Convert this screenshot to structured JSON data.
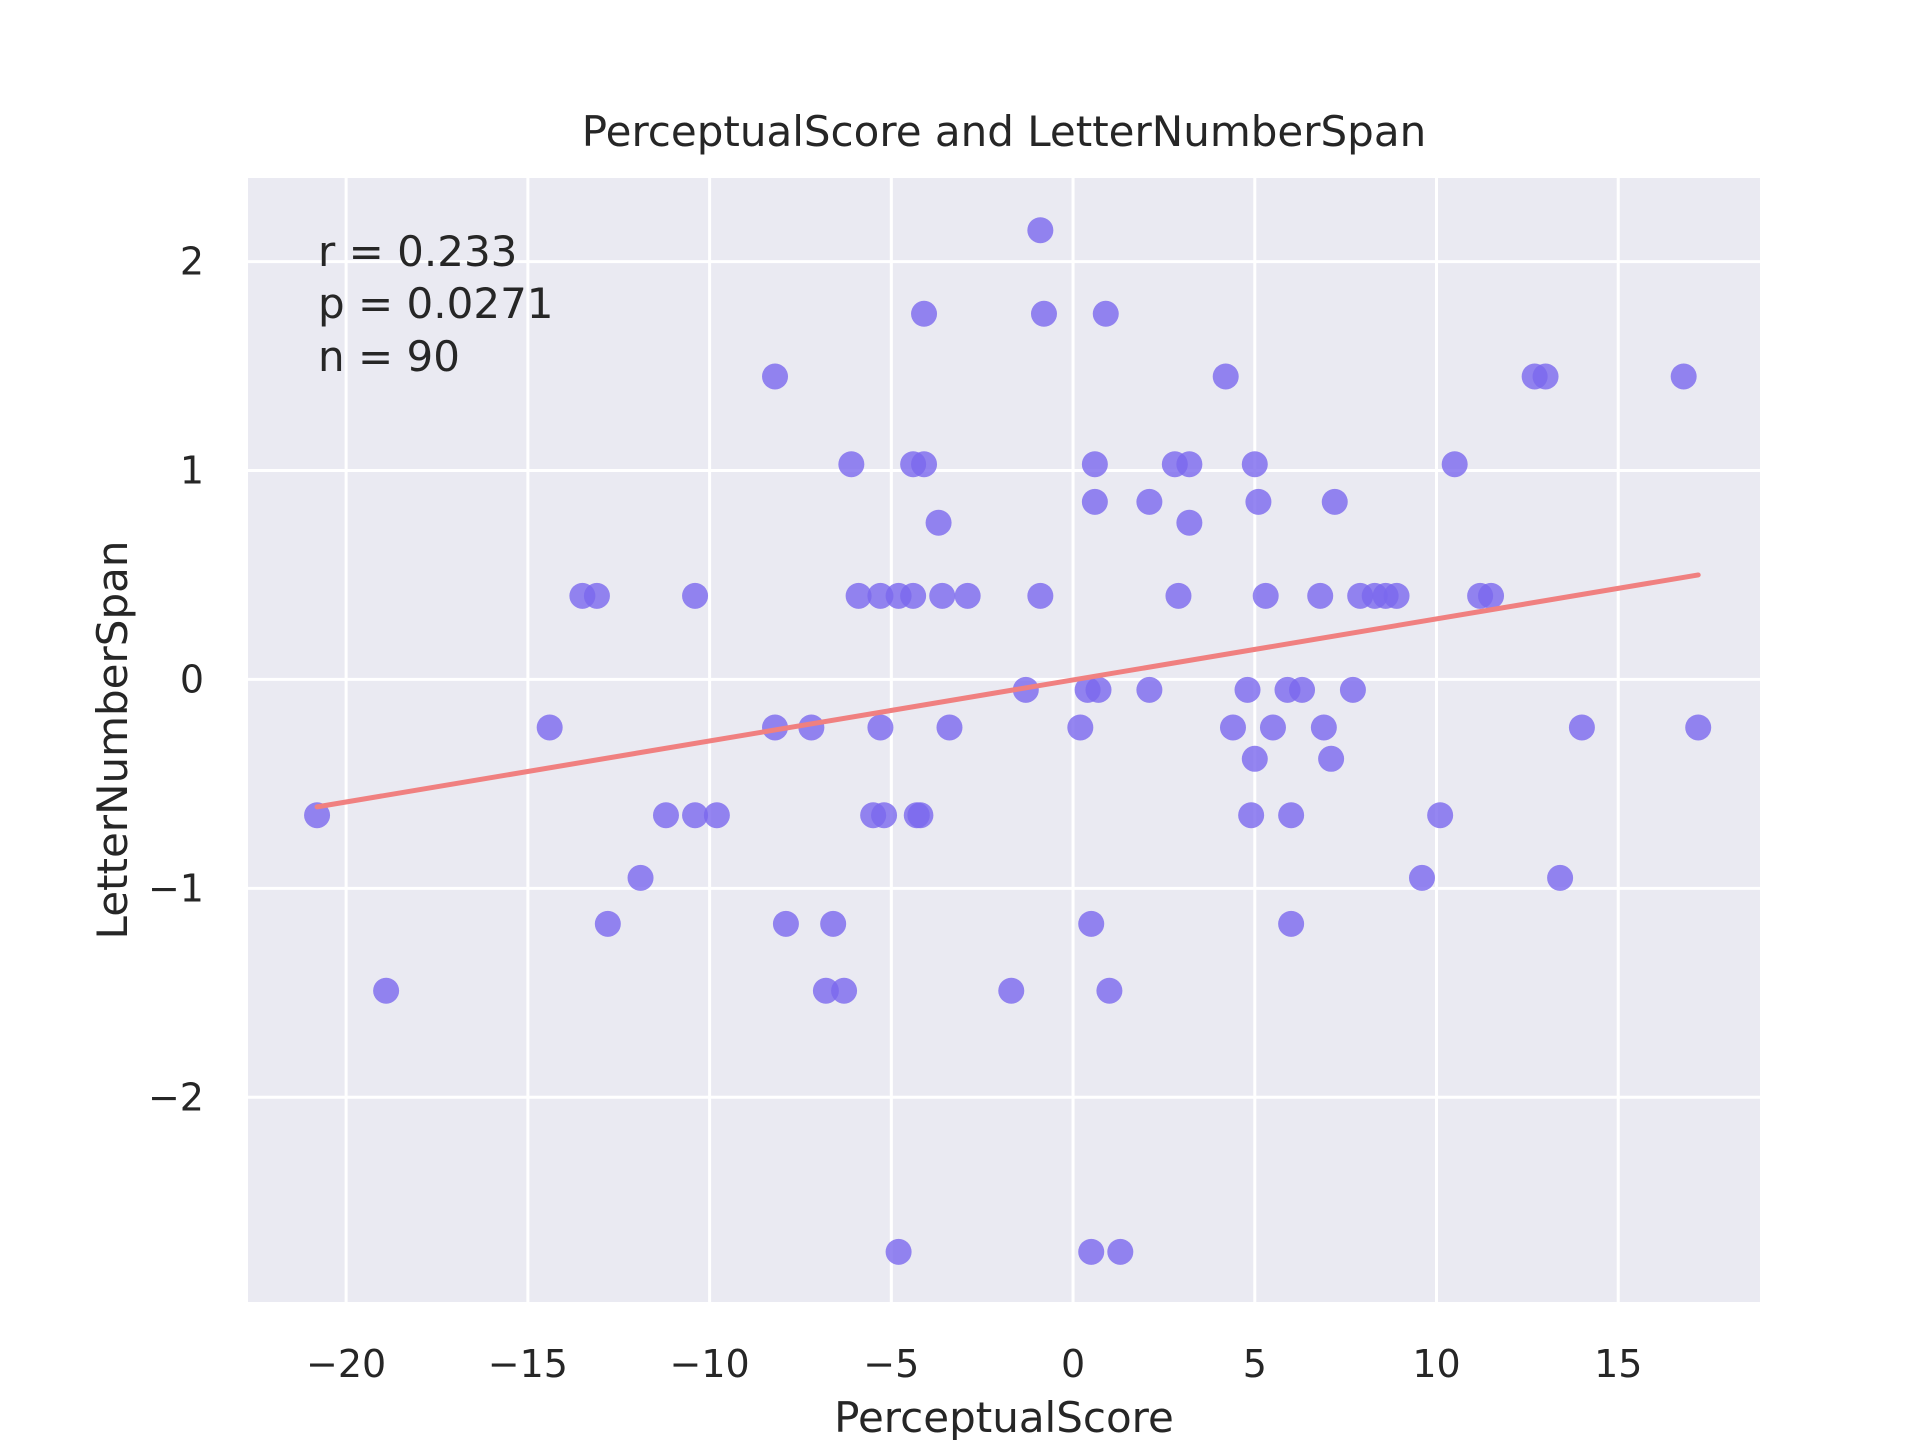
{
  "chart_data": {
    "type": "scatter",
    "title": "PerceptualScore and LetterNumberSpan",
    "xlabel": "PerceptualScore",
    "ylabel": "LetterNumberSpan",
    "xlim": [
      -22.7,
      18.9
    ],
    "ylim": [
      -2.98,
      2.4
    ],
    "xticks": [
      -20,
      -15,
      -10,
      -5,
      0,
      5,
      10,
      15
    ],
    "xtick_labels": [
      "−20",
      "−15",
      "−10",
      "−5",
      "0",
      "5",
      "10",
      "15"
    ],
    "yticks": [
      -2,
      -1,
      0,
      1,
      2
    ],
    "ytick_labels": [
      "−2",
      "−1",
      "0",
      "1",
      "2"
    ],
    "grid": true,
    "stats": {
      "r": "r = 0.233",
      "p": "p = 0.0271",
      "n": "n = 90"
    },
    "fit_line": {
      "x": [
        -20.8,
        17.2
      ],
      "y": [
        -0.61,
        0.5
      ]
    },
    "points": {
      "x": [
        -0.9,
        -4.1,
        -0.8,
        0.9,
        -8.2,
        4.2,
        12.7,
        13.0,
        16.8,
        -6.1,
        -4.4,
        -4.1,
        0.6,
        2.8,
        3.2,
        5.0,
        10.5,
        0.6,
        2.1,
        5.1,
        7.2,
        -3.7,
        3.2,
        -13.5,
        -13.1,
        -10.4,
        -5.9,
        -5.3,
        -4.8,
        -4.4,
        -3.6,
        -2.9,
        -0.9,
        2.9,
        5.3,
        6.8,
        7.9,
        8.3,
        8.6,
        8.9,
        11.2,
        11.5,
        -1.3,
        0.4,
        0.7,
        2.1,
        4.8,
        5.9,
        6.3,
        7.7,
        -14.4,
        -8.2,
        -7.2,
        -5.3,
        -3.4,
        0.2,
        4.4,
        5.5,
        6.9,
        14.0,
        17.2,
        5.0,
        7.1,
        -11.2,
        -10.4,
        -9.8,
        -5.5,
        -5.2,
        -4.3,
        -4.2,
        4.9,
        6.0,
        10.1,
        -20.8,
        -11.9,
        9.6,
        13.4,
        -12.8,
        -7.9,
        -6.6,
        0.5,
        6.0,
        -18.9,
        -6.8,
        -6.3,
        -1.7,
        1.0,
        -4.8,
        0.5,
        1.3
      ],
      "y": [
        2.15,
        1.75,
        1.75,
        1.75,
        1.45,
        1.45,
        1.45,
        1.45,
        1.45,
        1.03,
        1.03,
        1.03,
        1.03,
        1.03,
        1.03,
        1.03,
        1.03,
        0.85,
        0.85,
        0.85,
        0.85,
        0.75,
        0.75,
        0.4,
        0.4,
        0.4,
        0.4,
        0.4,
        0.4,
        0.4,
        0.4,
        0.4,
        0.4,
        0.4,
        0.4,
        0.4,
        0.4,
        0.4,
        0.4,
        0.4,
        0.4,
        0.4,
        -0.05,
        -0.05,
        -0.05,
        -0.05,
        -0.05,
        -0.05,
        -0.05,
        -0.05,
        -0.23,
        -0.23,
        -0.23,
        -0.23,
        -0.23,
        -0.23,
        -0.23,
        -0.23,
        -0.23,
        -0.23,
        -0.23,
        -0.38,
        -0.38,
        -0.65,
        -0.65,
        -0.65,
        -0.65,
        -0.65,
        -0.65,
        -0.65,
        -0.65,
        -0.65,
        -0.65,
        -0.65,
        -0.95,
        -0.95,
        -0.95,
        -1.17,
        -1.17,
        -1.17,
        -1.17,
        -1.17,
        -1.49,
        -1.49,
        -1.49,
        -1.49,
        -1.49,
        -2.74,
        -2.74,
        -2.74
      ]
    },
    "colors": {
      "background": "#eaeaf2",
      "grid": "#ffffff",
      "points": "#7b68ee",
      "fit_line": "#f08080"
    }
  }
}
